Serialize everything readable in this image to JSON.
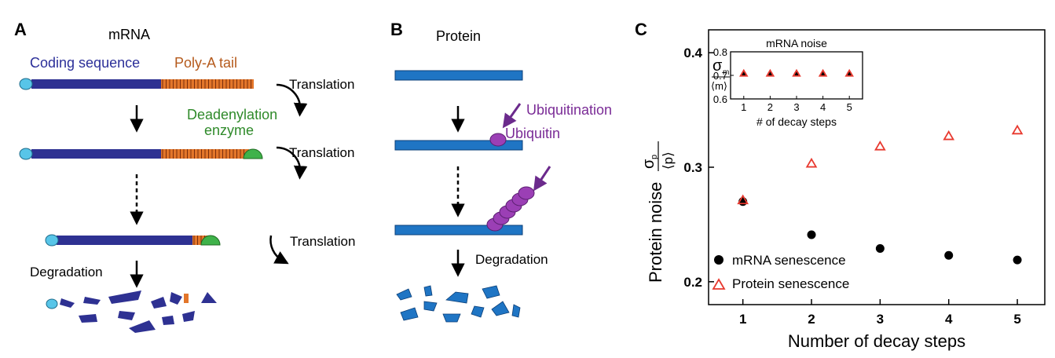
{
  "panelA": {
    "letter": "A",
    "title": "mRNA",
    "coding_label": "Coding sequence",
    "polya_label": "Poly-A tail",
    "translation_1": "Translation",
    "translation_2": "Translation",
    "translation_3": "Translation",
    "enzyme_label_1": "Deadenylation",
    "enzyme_label_2": "enzyme",
    "degradation": "Degradation"
  },
  "panelB": {
    "letter": "B",
    "title": "Protein",
    "ubiquitination": "Ubiquitination",
    "ubiquitin": "Ubiquitin",
    "degradation": "Degradation"
  },
  "panelC": {
    "letter": "C",
    "colors": {
      "mrna": "#000000",
      "protein": "#e8392f"
    },
    "chart_data": [
      {
        "type": "scatter",
        "xlabel": "Number of decay steps",
        "ylabel_text": "Protein noise",
        "ylabel_sigma": "σ",
        "ylabel_sub": "p",
        "ylabel_den": "⟨p⟩",
        "xlim": [
          0.5,
          5.4
        ],
        "ylim": [
          0.18,
          0.42
        ],
        "x_ticks": [
          "1",
          "2",
          "3",
          "4",
          "5"
        ],
        "y_ticks": [
          "0.2",
          "0.3",
          "0.4"
        ],
        "legend_position": "bottom-left",
        "series": [
          {
            "name": "mRNA senescence",
            "marker": "circle",
            "x": [
              1,
              2,
              3,
              4,
              5
            ],
            "y": [
              0.27,
              0.241,
              0.229,
              0.223,
              0.219
            ]
          },
          {
            "name": "Protein senescence",
            "marker": "triangle",
            "x": [
              1,
              2,
              3,
              4,
              5
            ],
            "y": [
              0.271,
              0.303,
              0.318,
              0.327,
              0.332
            ]
          }
        ]
      },
      {
        "type": "scatter",
        "title": "mRNA noise",
        "xlabel": "# of decay steps",
        "ylabel_sigma": "σ",
        "ylabel_sub": "m",
        "ylabel_den": "⟨m⟩",
        "xlim": [
          0.5,
          5.5
        ],
        "ylim": [
          0.6,
          0.8
        ],
        "x_ticks": [
          "1",
          "2",
          "3",
          "4",
          "5"
        ],
        "y_ticks": [
          "0.6",
          "0.7",
          "0.8"
        ],
        "series": [
          {
            "marker": "circle",
            "x": [
              1,
              2,
              3,
              4,
              5
            ],
            "y": [
              0.707,
              0.707,
              0.707,
              0.707,
              0.707
            ]
          },
          {
            "marker": "triangle",
            "x": [
              1,
              2,
              3,
              4,
              5
            ],
            "y": [
              0.707,
              0.707,
              0.707,
              0.707,
              0.707
            ]
          }
        ]
      }
    ]
  }
}
